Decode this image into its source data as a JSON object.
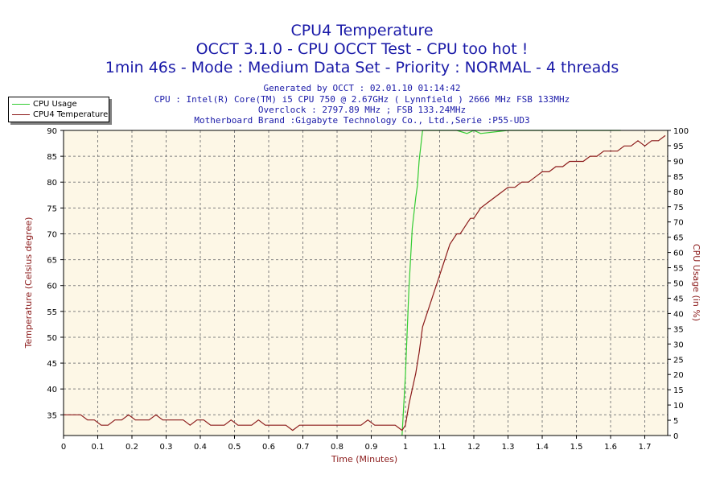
{
  "header": {
    "title": "CPU4 Temperature",
    "subtitle1": "OCCT 3.1.0 - CPU OCCT Test - CPU too hot !",
    "subtitle2": "1min 46s - Mode : Medium Data Set - Priority : NORMAL - 4 threads",
    "info1": "Generated by OCCT : 02.01.10 01:14:42",
    "info2": "CPU : Intel(R) Core(TM) i5 CPU 750 @ 2.67GHz ( Lynnfield ) 2666 MHz FSB 133MHz",
    "info3": "Overclock : 2797.89 MHz ; FSB 133.24MHz",
    "info4": "Motherboard Brand :Gigabyte Technology Co., Ltd.,Serie :P55-UD3"
  },
  "chart_data": {
    "type": "line",
    "title": "CPU4 Temperature",
    "xlabel": "Time (Minutes)",
    "ylabel": "Temperature (Celsius degree)",
    "y2label": "CPU Usage (in %)",
    "xlim": [
      0,
      1.767
    ],
    "ylim": [
      31,
      90
    ],
    "y2lim": [
      0,
      100
    ],
    "x_ticks": [
      "0",
      "0.1",
      "0.2",
      "0.3",
      "0.4",
      "0.5",
      "0.6",
      "0.7",
      "0.8",
      "0.9",
      "1",
      "1.1",
      "1.2",
      "1.3",
      "1.4",
      "1.5",
      "1.6",
      "1.7"
    ],
    "y_ticks": [
      "35",
      "40",
      "45",
      "50",
      "55",
      "60",
      "65",
      "70",
      "75",
      "80",
      "85",
      "90"
    ],
    "y2_ticks": [
      "0",
      "5",
      "10",
      "15",
      "20",
      "25",
      "30",
      "35",
      "40",
      "45",
      "50",
      "55",
      "60",
      "65",
      "70",
      "75",
      "80",
      "85",
      "90",
      "95",
      "100"
    ],
    "grid": true,
    "legend_position": "top-left",
    "plot_background": "#fdf7e6",
    "series": [
      {
        "name": "CPU Usage",
        "axis": "right",
        "color": "#33cc33",
        "x": [
          0.99,
          1.0,
          1.01,
          1.02,
          1.03,
          1.035,
          1.04,
          1.05,
          1.06,
          1.08,
          1.1,
          1.15,
          1.18,
          1.2,
          1.22,
          1.3,
          1.4,
          1.5,
          1.6,
          1.63
        ],
        "y": [
          0,
          20,
          48,
          68,
          78,
          82,
          90,
          100,
          100,
          100,
          100,
          100,
          99,
          100,
          99,
          100,
          100,
          100,
          100,
          100
        ]
      },
      {
        "name": "CPU4 Temperature",
        "axis": "left",
        "color": "#8b1a1a",
        "x": [
          0,
          0.02,
          0.05,
          0.07,
          0.09,
          0.11,
          0.13,
          0.15,
          0.17,
          0.19,
          0.21,
          0.23,
          0.25,
          0.27,
          0.29,
          0.31,
          0.33,
          0.35,
          0.37,
          0.39,
          0.41,
          0.43,
          0.45,
          0.47,
          0.49,
          0.51,
          0.53,
          0.55,
          0.57,
          0.59,
          0.61,
          0.63,
          0.65,
          0.67,
          0.69,
          0.71,
          0.73,
          0.75,
          0.77,
          0.79,
          0.81,
          0.83,
          0.85,
          0.87,
          0.89,
          0.91,
          0.93,
          0.95,
          0.97,
          0.99,
          1.0,
          1.01,
          1.02,
          1.03,
          1.04,
          1.05,
          1.06,
          1.07,
          1.08,
          1.09,
          1.1,
          1.11,
          1.12,
          1.13,
          1.14,
          1.15,
          1.16,
          1.17,
          1.18,
          1.19,
          1.2,
          1.22,
          1.24,
          1.26,
          1.28,
          1.3,
          1.32,
          1.34,
          1.36,
          1.38,
          1.4,
          1.42,
          1.44,
          1.46,
          1.48,
          1.5,
          1.52,
          1.54,
          1.56,
          1.58,
          1.6,
          1.62,
          1.64,
          1.66,
          1.68,
          1.7,
          1.72,
          1.74,
          1.76
        ],
        "y": [
          35,
          35,
          35,
          34,
          34,
          33,
          33,
          34,
          34,
          35,
          34,
          34,
          34,
          35,
          34,
          34,
          34,
          34,
          33,
          34,
          34,
          33,
          33,
          33,
          34,
          33,
          33,
          33,
          34,
          33,
          33,
          33,
          33,
          32,
          33,
          33,
          33,
          33,
          33,
          33,
          33,
          33,
          33,
          33,
          34,
          33,
          33,
          33,
          33,
          32,
          33,
          37,
          40,
          43,
          47,
          52,
          54,
          56,
          58,
          60,
          62,
          64,
          66,
          68,
          69,
          70,
          70,
          71,
          72,
          73,
          73,
          75,
          76,
          77,
          78,
          79,
          79,
          80,
          80,
          81,
          82,
          82,
          83,
          83,
          84,
          84,
          84,
          85,
          85,
          86,
          86,
          86,
          87,
          87,
          88,
          87,
          88,
          88,
          89
        ]
      }
    ]
  }
}
